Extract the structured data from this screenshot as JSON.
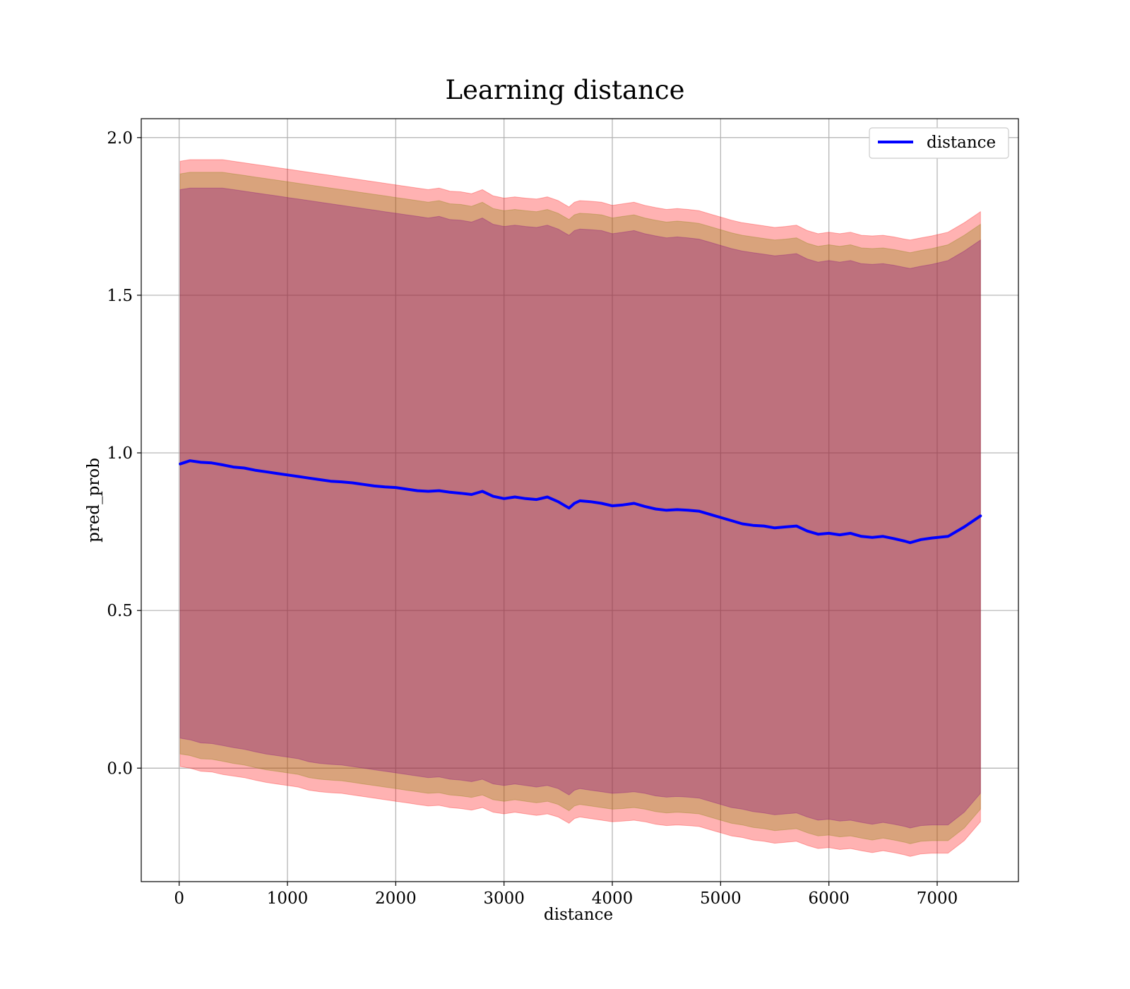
{
  "chart_data": {
    "type": "area",
    "title": "Learning distance",
    "xlabel": "distance",
    "ylabel": "pred_prob",
    "xlim": [
      -350,
      7750
    ],
    "ylim": [
      -0.36,
      2.06
    ],
    "xticks": [
      0,
      1000,
      2000,
      3000,
      4000,
      5000,
      6000,
      7000
    ],
    "yticks": [
      0.0,
      0.5,
      1.0,
      1.5,
      2.0
    ],
    "ytick_labels": [
      "0.0",
      "0.5",
      "1.0",
      "1.5",
      "2.0"
    ],
    "grid": true,
    "legend_position": "top-right",
    "x": [
      10,
      100,
      200,
      300,
      400,
      500,
      600,
      700,
      800,
      900,
      1000,
      1100,
      1200,
      1300,
      1400,
      1500,
      1600,
      1700,
      1800,
      1900,
      2000,
      2100,
      2200,
      2300,
      2400,
      2500,
      2600,
      2700,
      2800,
      2900,
      3000,
      3100,
      3200,
      3300,
      3400,
      3500,
      3600,
      3650,
      3700,
      3800,
      3900,
      4000,
      4100,
      4200,
      4300,
      4400,
      4500,
      4600,
      4700,
      4800,
      4900,
      5000,
      5100,
      5200,
      5300,
      5400,
      5500,
      5600,
      5700,
      5800,
      5900,
      6000,
      6100,
      6200,
      6300,
      6400,
      6500,
      6600,
      6700,
      6750,
      6850,
      6950,
      7100,
      7250,
      7400
    ],
    "series": [
      {
        "name": "distance",
        "color": "#0000ff",
        "values": [
          0.965,
          0.975,
          0.97,
          0.968,
          0.962,
          0.955,
          0.952,
          0.945,
          0.94,
          0.935,
          0.93,
          0.925,
          0.92,
          0.915,
          0.91,
          0.908,
          0.905,
          0.9,
          0.895,
          0.892,
          0.89,
          0.885,
          0.88,
          0.878,
          0.88,
          0.875,
          0.872,
          0.868,
          0.878,
          0.862,
          0.855,
          0.86,
          0.855,
          0.852,
          0.86,
          0.845,
          0.825,
          0.84,
          0.848,
          0.845,
          0.84,
          0.832,
          0.835,
          0.84,
          0.83,
          0.822,
          0.818,
          0.82,
          0.818,
          0.815,
          0.805,
          0.795,
          0.785,
          0.775,
          0.77,
          0.768,
          0.762,
          0.765,
          0.768,
          0.752,
          0.742,
          0.745,
          0.74,
          0.745,
          0.735,
          0.732,
          0.735,
          0.728,
          0.72,
          0.715,
          0.725,
          0.73,
          0.735,
          0.765,
          0.8
        ]
      }
    ],
    "bands": [
      {
        "color": "#ff0000",
        "opacity": 0.3,
        "lower": [
          0.005,
          0.0,
          -0.01,
          -0.012,
          -0.02,
          -0.025,
          -0.03,
          -0.038,
          -0.045,
          -0.05,
          -0.055,
          -0.06,
          -0.07,
          -0.075,
          -0.078,
          -0.08,
          -0.085,
          -0.09,
          -0.095,
          -0.1,
          -0.105,
          -0.11,
          -0.115,
          -0.12,
          -0.118,
          -0.125,
          -0.128,
          -0.133,
          -0.125,
          -0.14,
          -0.145,
          -0.14,
          -0.145,
          -0.15,
          -0.145,
          -0.155,
          -0.175,
          -0.16,
          -0.155,
          -0.16,
          -0.165,
          -0.17,
          -0.168,
          -0.165,
          -0.17,
          -0.178,
          -0.182,
          -0.18,
          -0.182,
          -0.185,
          -0.195,
          -0.205,
          -0.215,
          -0.22,
          -0.228,
          -0.232,
          -0.238,
          -0.235,
          -0.232,
          -0.245,
          -0.255,
          -0.252,
          -0.258,
          -0.255,
          -0.262,
          -0.268,
          -0.262,
          -0.268,
          -0.275,
          -0.28,
          -0.272,
          -0.27,
          -0.27,
          -0.23,
          -0.17
        ],
        "upper": [
          1.925,
          1.93,
          1.93,
          1.93,
          1.93,
          1.925,
          1.92,
          1.915,
          1.91,
          1.905,
          1.9,
          1.895,
          1.89,
          1.885,
          1.88,
          1.875,
          1.87,
          1.865,
          1.86,
          1.855,
          1.85,
          1.845,
          1.84,
          1.835,
          1.84,
          1.83,
          1.828,
          1.822,
          1.835,
          1.815,
          1.808,
          1.812,
          1.808,
          1.805,
          1.812,
          1.8,
          1.78,
          1.795,
          1.8,
          1.798,
          1.795,
          1.785,
          1.79,
          1.795,
          1.785,
          1.778,
          1.772,
          1.775,
          1.772,
          1.768,
          1.758,
          1.748,
          1.738,
          1.73,
          1.725,
          1.72,
          1.715,
          1.718,
          1.722,
          1.705,
          1.695,
          1.7,
          1.695,
          1.7,
          1.69,
          1.688,
          1.69,
          1.685,
          1.678,
          1.675,
          1.682,
          1.688,
          1.7,
          1.73,
          1.765
        ]
      },
      {
        "color": "#808000",
        "opacity": 0.3,
        "lower": [
          0.045,
          0.04,
          0.03,
          0.028,
          0.022,
          0.015,
          0.01,
          0.002,
          -0.005,
          -0.01,
          -0.015,
          -0.02,
          -0.03,
          -0.035,
          -0.038,
          -0.04,
          -0.045,
          -0.05,
          -0.055,
          -0.06,
          -0.065,
          -0.07,
          -0.075,
          -0.08,
          -0.078,
          -0.085,
          -0.088,
          -0.093,
          -0.085,
          -0.1,
          -0.105,
          -0.1,
          -0.105,
          -0.11,
          -0.105,
          -0.115,
          -0.135,
          -0.12,
          -0.115,
          -0.12,
          -0.125,
          -0.13,
          -0.128,
          -0.125,
          -0.13,
          -0.138,
          -0.142,
          -0.14,
          -0.142,
          -0.145,
          -0.155,
          -0.165,
          -0.175,
          -0.18,
          -0.188,
          -0.192,
          -0.198,
          -0.195,
          -0.192,
          -0.205,
          -0.215,
          -0.212,
          -0.218,
          -0.215,
          -0.222,
          -0.228,
          -0.222,
          -0.228,
          -0.235,
          -0.24,
          -0.232,
          -0.23,
          -0.23,
          -0.19,
          -0.13
        ],
        "upper": [
          1.885,
          1.89,
          1.89,
          1.89,
          1.89,
          1.885,
          1.88,
          1.875,
          1.87,
          1.865,
          1.86,
          1.855,
          1.85,
          1.845,
          1.84,
          1.835,
          1.83,
          1.825,
          1.82,
          1.815,
          1.81,
          1.805,
          1.8,
          1.795,
          1.8,
          1.79,
          1.788,
          1.782,
          1.795,
          1.775,
          1.768,
          1.772,
          1.768,
          1.765,
          1.772,
          1.76,
          1.74,
          1.755,
          1.76,
          1.758,
          1.755,
          1.745,
          1.75,
          1.755,
          1.745,
          1.738,
          1.732,
          1.735,
          1.732,
          1.728,
          1.718,
          1.708,
          1.698,
          1.69,
          1.685,
          1.68,
          1.675,
          1.678,
          1.682,
          1.665,
          1.655,
          1.66,
          1.655,
          1.66,
          1.65,
          1.648,
          1.65,
          1.645,
          1.638,
          1.635,
          1.642,
          1.648,
          1.66,
          1.69,
          1.725
        ]
      },
      {
        "color": "#800080",
        "opacity": 0.3,
        "lower": [
          0.095,
          0.09,
          0.08,
          0.078,
          0.072,
          0.065,
          0.06,
          0.052,
          0.045,
          0.04,
          0.035,
          0.03,
          0.02,
          0.015,
          0.012,
          0.01,
          0.005,
          0.0,
          -0.005,
          -0.01,
          -0.015,
          -0.02,
          -0.025,
          -0.03,
          -0.028,
          -0.035,
          -0.038,
          -0.043,
          -0.035,
          -0.05,
          -0.055,
          -0.05,
          -0.055,
          -0.06,
          -0.055,
          -0.065,
          -0.085,
          -0.07,
          -0.065,
          -0.07,
          -0.075,
          -0.08,
          -0.078,
          -0.075,
          -0.08,
          -0.088,
          -0.092,
          -0.09,
          -0.092,
          -0.095,
          -0.105,
          -0.115,
          -0.125,
          -0.13,
          -0.138,
          -0.142,
          -0.148,
          -0.145,
          -0.142,
          -0.155,
          -0.165,
          -0.162,
          -0.168,
          -0.165,
          -0.172,
          -0.178,
          -0.172,
          -0.178,
          -0.185,
          -0.19,
          -0.182,
          -0.18,
          -0.18,
          -0.14,
          -0.08
        ],
        "upper": [
          1.835,
          1.84,
          1.84,
          1.84,
          1.84,
          1.835,
          1.83,
          1.825,
          1.82,
          1.815,
          1.81,
          1.805,
          1.8,
          1.795,
          1.79,
          1.785,
          1.78,
          1.775,
          1.77,
          1.765,
          1.76,
          1.755,
          1.75,
          1.745,
          1.75,
          1.74,
          1.738,
          1.732,
          1.745,
          1.725,
          1.718,
          1.722,
          1.718,
          1.715,
          1.722,
          1.71,
          1.69,
          1.705,
          1.71,
          1.708,
          1.705,
          1.695,
          1.7,
          1.705,
          1.695,
          1.688,
          1.682,
          1.685,
          1.682,
          1.678,
          1.668,
          1.658,
          1.648,
          1.64,
          1.635,
          1.63,
          1.625,
          1.628,
          1.632,
          1.615,
          1.605,
          1.61,
          1.605,
          1.61,
          1.6,
          1.598,
          1.6,
          1.595,
          1.588,
          1.585,
          1.592,
          1.598,
          1.61,
          1.64,
          1.675
        ]
      }
    ]
  }
}
